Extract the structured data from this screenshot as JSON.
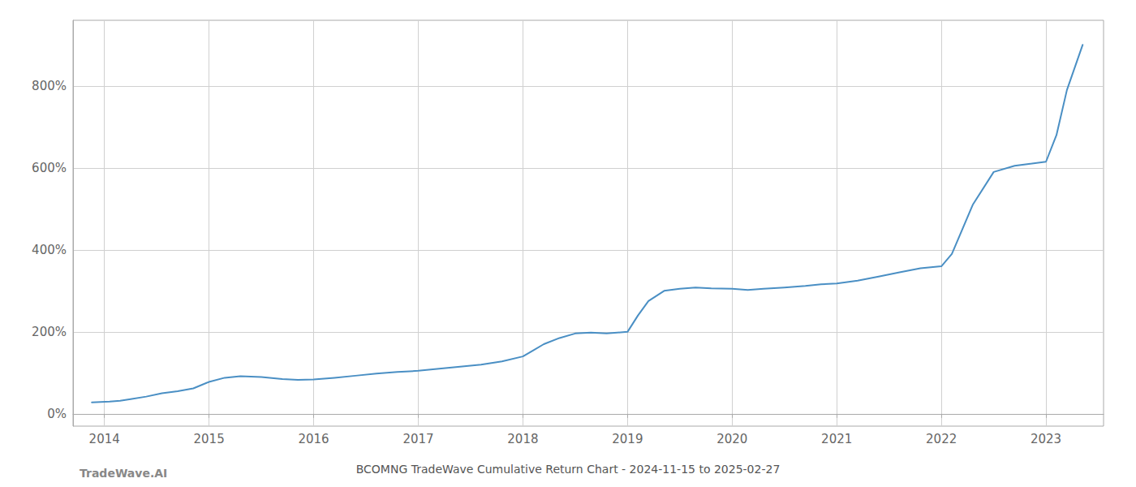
{
  "chart_data": {
    "type": "line",
    "title": "BCOMNG TradeWave Cumulative Return Chart - 2024-11-15 to 2025-02-27",
    "annotations": [
      "TradeWave.AI"
    ],
    "color": "#4a8fc4",
    "grid": true,
    "xlim": [
      2013.7,
      2023.55
    ],
    "xticks": [
      2014,
      2015,
      2016,
      2017,
      2018,
      2019,
      2020,
      2021,
      2022,
      2023
    ],
    "ylim": [
      -30,
      960
    ],
    "yticks": [
      {
        "value": 0,
        "label": "0%"
      },
      {
        "value": 200,
        "label": "200%"
      },
      {
        "value": 400,
        "label": "400%"
      },
      {
        "value": 600,
        "label": "600%"
      },
      {
        "value": 800,
        "label": "800%"
      }
    ],
    "x": [
      2013.88,
      2014.05,
      2014.15,
      2014.25,
      2014.4,
      2014.55,
      2014.7,
      2014.85,
      2015.0,
      2015.15,
      2015.3,
      2015.5,
      2015.7,
      2015.85,
      2016.0,
      2016.2,
      2016.4,
      2016.6,
      2016.8,
      2017.0,
      2017.2,
      2017.4,
      2017.6,
      2017.8,
      2018.0,
      2018.1,
      2018.2,
      2018.35,
      2018.5,
      2018.65,
      2018.8,
      2019.0,
      2019.1,
      2019.2,
      2019.35,
      2019.5,
      2019.65,
      2019.8,
      2020.0,
      2020.15,
      2020.3,
      2020.5,
      2020.7,
      2020.85,
      2021.0,
      2021.2,
      2021.4,
      2021.6,
      2021.8,
      2022.0,
      2022.1,
      2022.2,
      2022.3,
      2022.5,
      2022.7,
      2022.85,
      2023.0,
      2023.1,
      2023.2,
      2023.35
    ],
    "values": [
      28,
      30,
      32,
      36,
      42,
      50,
      55,
      62,
      78,
      88,
      92,
      90,
      85,
      83,
      84,
      88,
      93,
      98,
      102,
      105,
      110,
      115,
      120,
      128,
      140,
      155,
      170,
      185,
      196,
      198,
      196,
      200,
      240,
      275,
      300,
      305,
      308,
      306,
      305,
      302,
      305,
      308,
      312,
      316,
      318,
      325,
      335,
      345,
      355,
      360,
      390,
      450,
      510,
      590,
      605,
      610,
      615,
      680,
      790,
      900
    ]
  }
}
